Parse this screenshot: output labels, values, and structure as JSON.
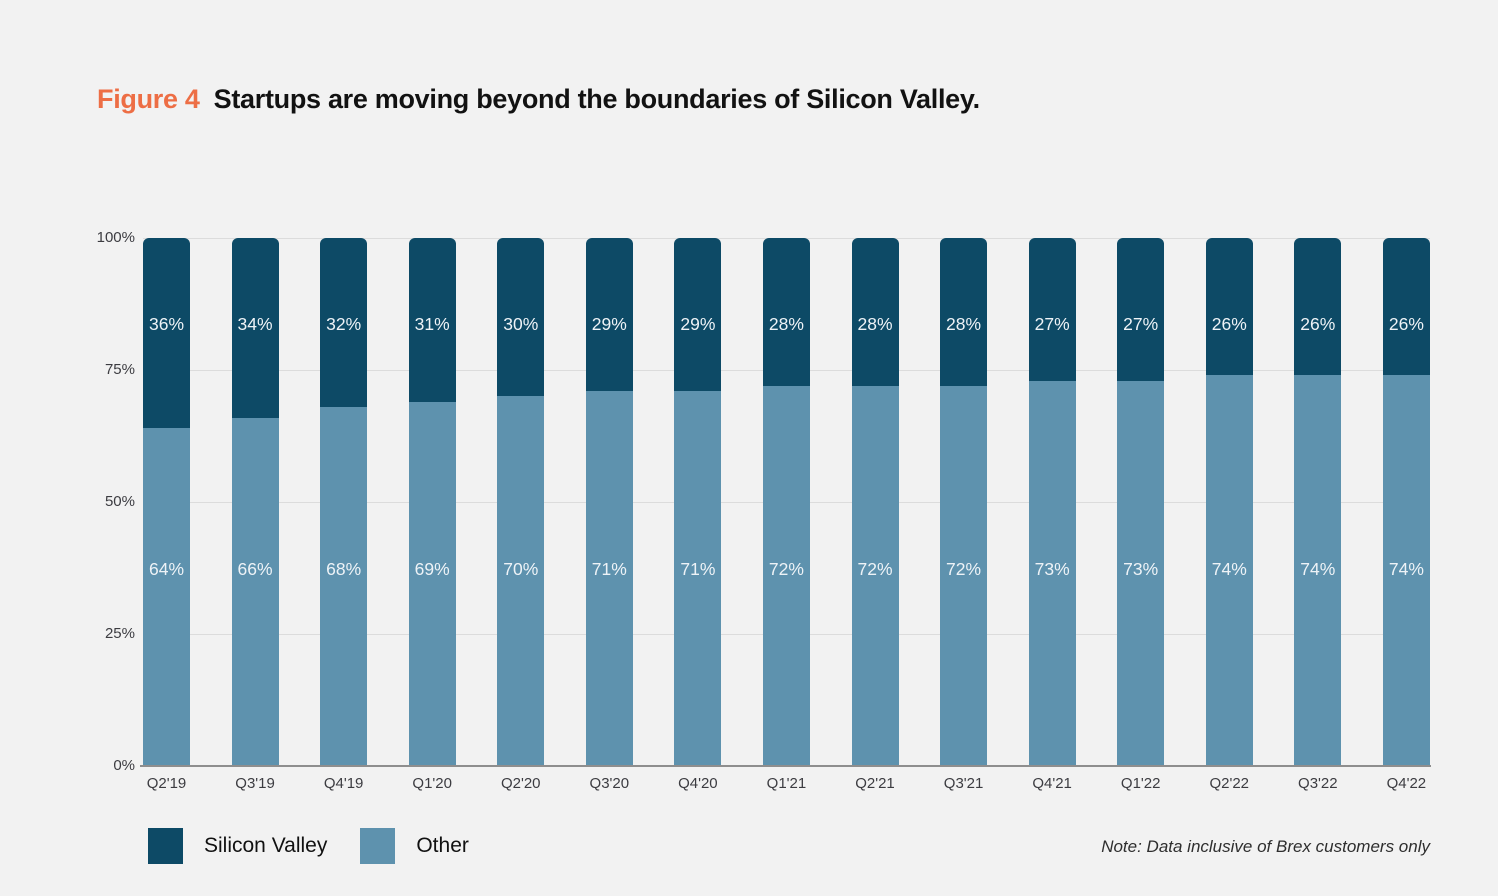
{
  "title": {
    "figure_label": "Figure 4",
    "text": "Startups are moving beyond the boundaries of Silicon Valley."
  },
  "note": "Note: Data inclusive of Brex customers only",
  "colors": {
    "background": "#f2f2f2",
    "silicon_valley": "#0d4a66",
    "other": "#5e92ae",
    "accent_orange": "#ed6e45",
    "gridline": "#dcdcdc",
    "axis_line": "#8e8e8e",
    "axis_text": "#3c3c41"
  },
  "legend": {
    "items": [
      {
        "label": "Silicon Valley",
        "color": "#0d4a66"
      },
      {
        "label": "Other",
        "color": "#5e92ae"
      }
    ]
  },
  "chart_data": {
    "type": "bar",
    "stacked": true,
    "title": "Startups are moving beyond the boundaries of Silicon Valley.",
    "categories": [
      "Q2'19",
      "Q3'19",
      "Q4'19",
      "Q1'20",
      "Q2'20",
      "Q3'20",
      "Q4'20",
      "Q1'21",
      "Q2'21",
      "Q3'21",
      "Q4'21",
      "Q1'22",
      "Q2'22",
      "Q3'22",
      "Q4'22"
    ],
    "series": [
      {
        "name": "Silicon Valley",
        "color": "#0d4a66",
        "position": "top",
        "values": [
          36,
          34,
          32,
          31,
          30,
          29,
          29,
          28,
          28,
          28,
          27,
          27,
          26,
          26,
          26
        ]
      },
      {
        "name": "Other",
        "color": "#5e92ae",
        "position": "bottom",
        "values": [
          64,
          66,
          68,
          69,
          70,
          71,
          71,
          72,
          72,
          72,
          73,
          73,
          74,
          74,
          74
        ]
      }
    ],
    "value_suffix": "%",
    "y_ticks": [
      "100%",
      "75%",
      "50%",
      "25%",
      "0%"
    ],
    "ylim": [
      0,
      100
    ],
    "grid": true,
    "legend_position": "bottom-left"
  }
}
